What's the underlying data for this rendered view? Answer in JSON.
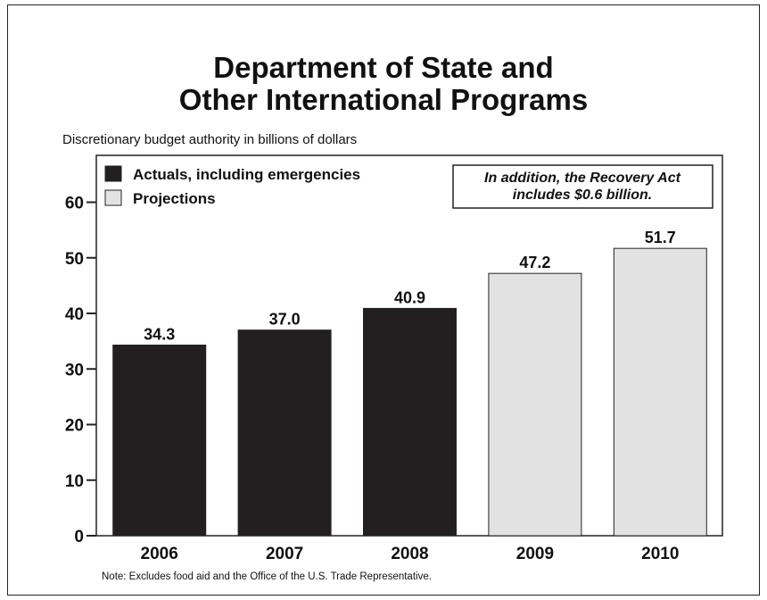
{
  "chart_data": {
    "type": "bar",
    "title_line1": "Department of State and",
    "title_line2": "Other International Programs",
    "subtitle": "Discretionary budget authority in billions of dollars",
    "categories": [
      "2006",
      "2007",
      "2008",
      "2009",
      "2010"
    ],
    "values": [
      34.3,
      37.0,
      40.9,
      47.2,
      51.7
    ],
    "value_labels": [
      "34.3",
      "37.0",
      "40.9",
      "47.2",
      "51.7"
    ],
    "bar_kind": [
      "actual",
      "actual",
      "actual",
      "projection",
      "projection"
    ],
    "ylim": [
      0,
      60
    ],
    "yticks": [
      0,
      10,
      20,
      30,
      40,
      50,
      60
    ],
    "grid": false,
    "legend": {
      "placement": "top-left",
      "entries": [
        {
          "key": "actual",
          "label": "Actuals, including emergencies",
          "color": "#231f20"
        },
        {
          "key": "projection",
          "label": "Projections",
          "color": "#e2e2e2"
        }
      ]
    },
    "annotation": {
      "line1": "In addition, the Recovery Act",
      "line2": "includes $0.6 billion."
    },
    "note": "Note:  Excludes food aid and the Office of the U.S. Trade Representative."
  }
}
